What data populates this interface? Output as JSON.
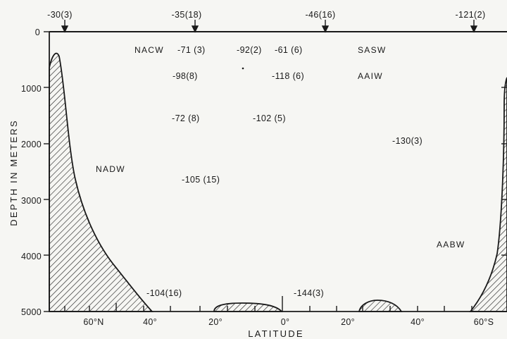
{
  "figure": {
    "y_axis_title": "DEPTH IN METERS",
    "x_axis_title": "LATITUDE",
    "y_ticks": [
      "0",
      "1000",
      "2000",
      "3000",
      "4000",
      "5000"
    ],
    "x_ticks": [
      "60°N",
      "40°",
      "20°",
      "0°",
      "20°",
      "40°",
      "60°S"
    ],
    "surface_values": [
      "-30(3)",
      "-35(18)",
      "-46(16)",
      "-121(2)"
    ],
    "water_masses": [
      "NACW",
      "SASW",
      "AAIW",
      "NADW",
      "AABW"
    ],
    "interior_values": [
      "-71 (3)",
      "-92(2)",
      "-61 (6)",
      "-98(8)",
      "-118 (6)",
      "-72 (8)",
      "-102 (5)",
      "-130(3)",
      "-105 (15)",
      "-104(16)",
      "-144(3)"
    ],
    "colors": {
      "ink": "#1a1a1a",
      "background": "#f6f6f3"
    }
  }
}
